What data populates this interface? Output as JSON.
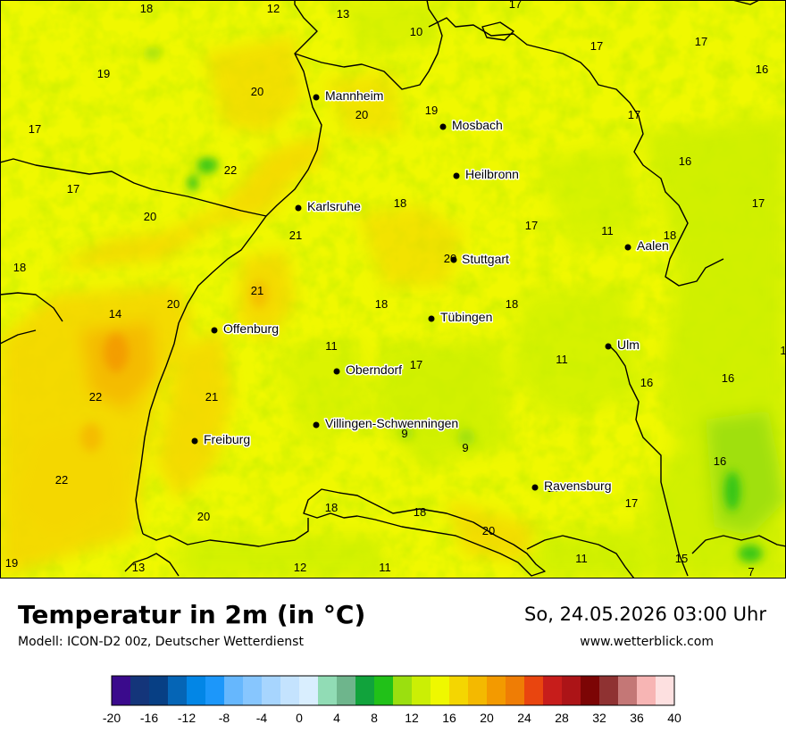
{
  "header": {
    "title": "Temperatur in 2m (in °C)",
    "model": "Modell: ICON-D2 00z, Deutscher Wetterdienst",
    "datetime": "So, 24.05.2026 03:00 Uhr",
    "website": "www.wetterblick.com"
  },
  "cities": [
    {
      "name": "Mannheim"
    },
    {
      "name": "Mosbach"
    },
    {
      "name": "Heilbronn"
    },
    {
      "name": "Karlsruhe"
    },
    {
      "name": "Stuttgart"
    },
    {
      "name": "Aalen"
    },
    {
      "name": "Tübingen"
    },
    {
      "name": "Offenburg"
    },
    {
      "name": "Ulm"
    },
    {
      "name": "Oberndorf"
    },
    {
      "name": "Villingen-Schwenningen"
    },
    {
      "name": "Freiburg"
    },
    {
      "name": "Ravensburg"
    }
  ],
  "temperature_labels": [
    "18",
    "12",
    "13",
    "17",
    "10",
    "17",
    "17",
    "16",
    "19",
    "20",
    "20",
    "19",
    "17",
    "17",
    "16",
    "22",
    "17",
    "20",
    "18",
    "21",
    "17",
    "11",
    "18",
    "17",
    "18",
    "21",
    "20",
    "18",
    "18",
    "14",
    "20",
    "11",
    "17",
    "11",
    "16",
    "16",
    "22",
    "21",
    "9",
    "9",
    "16",
    "22",
    "17",
    "20",
    "18",
    "18",
    "20",
    "17",
    "19",
    "13",
    "12",
    "11",
    "11",
    "15",
    "7",
    "1"
  ],
  "legend": {
    "colors": [
      "#3a0a8c",
      "#14357a",
      "#073f84",
      "#0565b6",
      "#0286e6",
      "#1c97fa",
      "#66b7fd",
      "#87c6fe",
      "#a7d5fe",
      "#c4e3fe",
      "#d9eefe",
      "#91dcb5",
      "#6eb58c",
      "#11a33c",
      "#21c118",
      "#9bdf0f",
      "#cbef05",
      "#eff800",
      "#f4d601",
      "#f4b900",
      "#f39a00",
      "#ef7d05",
      "#e9450f",
      "#c71d1b",
      "#ac1417",
      "#7c0505",
      "#8f3232",
      "#c47776",
      "#f7b5b4",
      "#fde0e0"
    ],
    "tick_labels": [
      "-20",
      "-16",
      "-12",
      "-8",
      "-4",
      "0",
      "4",
      "8",
      "12",
      "16",
      "20",
      "24",
      "28",
      "32",
      "36",
      "40"
    ]
  }
}
